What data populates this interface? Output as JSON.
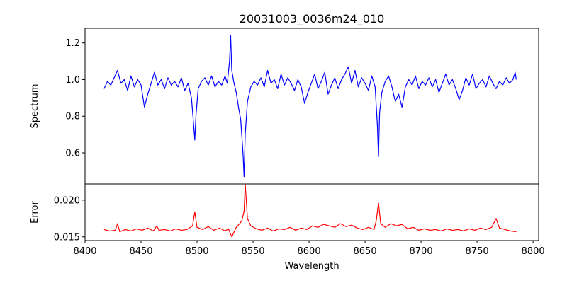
{
  "chart_data": [
    {
      "type": "line",
      "panel": "spectrum",
      "title": "20031003_0036m24_010",
      "xlabel": "",
      "ylabel": "Spectrum",
      "xlim": [
        8400,
        8805
      ],
      "ylim": [
        0.43,
        1.28
      ],
      "x_ticks": [
        8400,
        8450,
        8500,
        8550,
        8600,
        8650,
        8700,
        8750,
        8800
      ],
      "y_ticks": [
        0.6,
        0.8,
        1.0,
        1.2
      ],
      "y_tick_labels": [
        "0.6",
        "0.8",
        "1.0",
        "1.2"
      ],
      "color": "#0000ff",
      "series": [
        {
          "x": [
            8417,
            8420,
            8423,
            8426,
            8429,
            8432,
            8435,
            8438,
            8441,
            8444,
            8447,
            8450,
            8453,
            8456,
            8459,
            8462,
            8465,
            8468,
            8471,
            8474,
            8477,
            8480,
            8483,
            8486,
            8489,
            8492,
            8495,
            8497,
            8498,
            8499,
            8501,
            8504,
            8507,
            8510,
            8513,
            8516,
            8519,
            8522,
            8525,
            8527,
            8529,
            8530,
            8531,
            8533,
            8535,
            8537,
            8539,
            8541,
            8542,
            8543,
            8545,
            8548,
            8551,
            8554,
            8557,
            8560,
            8563,
            8566,
            8569,
            8572,
            8575,
            8578,
            8581,
            8584,
            8587,
            8590,
            8593,
            8596,
            8599,
            8602,
            8605,
            8608,
            8611,
            8614,
            8617,
            8620,
            8623,
            8626,
            8629,
            8632,
            8635,
            8638,
            8641,
            8644,
            8647,
            8650,
            8653,
            8656,
            8659,
            8661,
            8662,
            8663,
            8665,
            8668,
            8671,
            8674,
            8677,
            8680,
            8683,
            8686,
            8689,
            8692,
            8695,
            8698,
            8701,
            8704,
            8707,
            8710,
            8713,
            8716,
            8719,
            8722,
            8725,
            8728,
            8731,
            8734,
            8737,
            8740,
            8743,
            8746,
            8749,
            8752,
            8755,
            8758,
            8761,
            8764,
            8767,
            8770,
            8773,
            8776,
            8779,
            8782,
            8784,
            8785
          ],
          "y": [
            0.95,
            0.99,
            0.97,
            1.01,
            1.05,
            0.98,
            1.0,
            0.94,
            1.02,
            0.96,
            1.0,
            0.97,
            0.85,
            0.92,
            0.98,
            1.04,
            0.97,
            1.0,
            0.95,
            1.01,
            0.97,
            0.99,
            0.96,
            1.01,
            0.94,
            0.98,
            0.9,
            0.75,
            0.67,
            0.8,
            0.95,
            0.99,
            1.01,
            0.97,
            1.02,
            0.96,
            0.99,
            0.97,
            1.02,
            0.98,
            1.1,
            1.24,
            1.05,
            0.98,
            0.93,
            0.85,
            0.78,
            0.6,
            0.47,
            0.7,
            0.88,
            0.96,
            0.99,
            0.97,
            1.01,
            0.96,
            1.05,
            0.98,
            1.0,
            0.95,
            1.03,
            0.97,
            1.01,
            0.98,
            0.94,
            1.0,
            0.96,
            0.87,
            0.93,
            0.98,
            1.03,
            0.95,
            0.99,
            1.04,
            0.92,
            0.97,
            1.01,
            0.95,
            1.0,
            1.03,
            1.07,
            0.98,
            1.05,
            0.96,
            1.01,
            0.98,
            0.94,
            1.02,
            0.96,
            0.75,
            0.58,
            0.82,
            0.93,
            0.99,
            1.02,
            0.96,
            0.88,
            0.92,
            0.85,
            0.96,
            1.0,
            0.97,
            1.02,
            0.95,
            0.99,
            0.97,
            1.01,
            0.96,
            1.0,
            0.93,
            0.98,
            1.03,
            0.97,
            1.0,
            0.95,
            0.89,
            0.94,
            1.01,
            0.97,
            1.03,
            0.95,
            0.98,
            1.0,
            0.96,
            1.02,
            0.98,
            0.95,
            0.99,
            0.97,
            1.01,
            0.98,
            1.0,
            1.04,
            1.0
          ]
        }
      ]
    },
    {
      "type": "line",
      "panel": "error",
      "title": "",
      "xlabel": "Wavelength",
      "ylabel": "Error",
      "xlim": [
        8400,
        8805
      ],
      "ylim": [
        0.0145,
        0.0222
      ],
      "x_ticks": [
        8400,
        8450,
        8500,
        8550,
        8600,
        8650,
        8700,
        8750,
        8800
      ],
      "x_tick_labels": [
        "8400",
        "8450",
        "8500",
        "8550",
        "8600",
        "8650",
        "8700",
        "8750",
        "8800"
      ],
      "y_ticks": [
        0.015,
        0.02
      ],
      "y_tick_labels": [
        "0.015",
        "0.020"
      ],
      "color": "#ff0000",
      "series": [
        {
          "x": [
            8417,
            8422,
            8427,
            8429,
            8431,
            8436,
            8441,
            8446,
            8451,
            8456,
            8461,
            8464,
            8466,
            8471,
            8476,
            8481,
            8486,
            8491,
            8496,
            8498,
            8500,
            8505,
            8510,
            8515,
            8520,
            8525,
            8528,
            8531,
            8535,
            8538,
            8540,
            8542,
            8543,
            8545,
            8548,
            8553,
            8558,
            8563,
            8568,
            8573,
            8578,
            8583,
            8588,
            8593,
            8598,
            8603,
            8608,
            8613,
            8618,
            8623,
            8628,
            8633,
            8638,
            8643,
            8648,
            8653,
            8658,
            8660,
            8662,
            8664,
            8668,
            8673,
            8678,
            8683,
            8688,
            8693,
            8698,
            8703,
            8708,
            8713,
            8718,
            8723,
            8728,
            8733,
            8738,
            8743,
            8748,
            8753,
            8758,
            8763,
            8767,
            8770,
            8775,
            8780,
            8785
          ],
          "y": [
            0.016,
            0.0158,
            0.0159,
            0.0168,
            0.0157,
            0.016,
            0.0158,
            0.0161,
            0.0159,
            0.0162,
            0.0158,
            0.0165,
            0.0159,
            0.016,
            0.0158,
            0.0161,
            0.0159,
            0.016,
            0.0165,
            0.0184,
            0.0163,
            0.016,
            0.0164,
            0.0159,
            0.0162,
            0.0158,
            0.0161,
            0.015,
            0.0163,
            0.0168,
            0.0172,
            0.0185,
            0.0222,
            0.0175,
            0.0165,
            0.0161,
            0.0159,
            0.0162,
            0.0158,
            0.0161,
            0.016,
            0.0163,
            0.0159,
            0.0162,
            0.016,
            0.0165,
            0.0163,
            0.0167,
            0.0165,
            0.0163,
            0.0168,
            0.0164,
            0.0166,
            0.0162,
            0.016,
            0.0163,
            0.016,
            0.0172,
            0.0196,
            0.0168,
            0.0163,
            0.0168,
            0.0165,
            0.0167,
            0.0161,
            0.0163,
            0.0159,
            0.0161,
            0.0159,
            0.016,
            0.0158,
            0.0161,
            0.0159,
            0.016,
            0.0158,
            0.0161,
            0.0159,
            0.0162,
            0.016,
            0.0163,
            0.0175,
            0.0162,
            0.016,
            0.0158,
            0.0157
          ]
        }
      ]
    }
  ]
}
